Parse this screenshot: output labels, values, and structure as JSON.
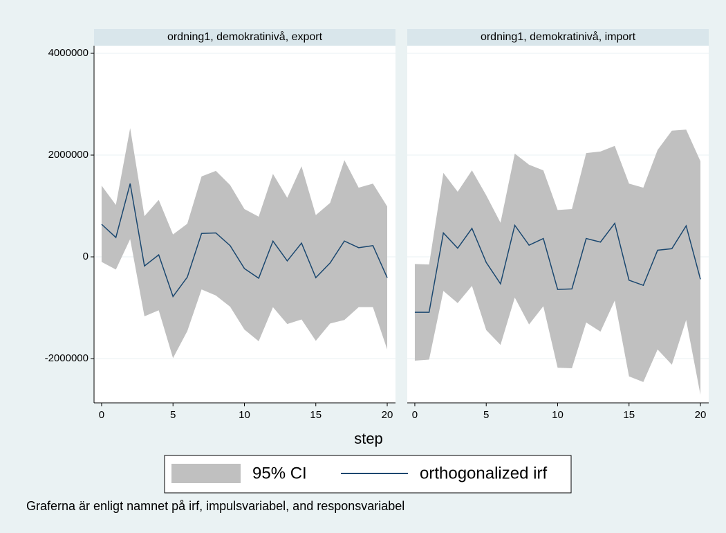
{
  "chart_data": {
    "type": "line",
    "xlabel": "step",
    "note": "Graferna är enligt namnet på irf, impulsvariabel, and responsvariabel",
    "x": [
      0,
      1,
      2,
      3,
      4,
      5,
      6,
      7,
      8,
      9,
      10,
      11,
      12,
      13,
      14,
      15,
      16,
      17,
      18,
      19,
      20
    ],
    "xlim": [
      -0.53,
      20.58
    ],
    "xticks": [
      0,
      5,
      10,
      15,
      20
    ],
    "ylim": [
      -2870000,
      4150000
    ],
    "yticks": [
      -2000000,
      0,
      2000000,
      4000000
    ],
    "grid": true,
    "ci": {
      "name": "95% CI",
      "color": "#c0c0c0"
    },
    "irf": {
      "name": "orthogonalized irf",
      "color": "#1a476f"
    },
    "panels": [
      {
        "title": "ordning1, demokratinivå, export",
        "irf": [
          640000,
          380000,
          1440000,
          -180000,
          40000,
          -780000,
          -400000,
          460000,
          470000,
          220000,
          -230000,
          -420000,
          310000,
          -80000,
          270000,
          -410000,
          -120000,
          310000,
          180000,
          220000,
          -410000
        ],
        "ci_upper": [
          1400000,
          1020000,
          2530000,
          800000,
          1120000,
          440000,
          650000,
          1580000,
          1690000,
          1410000,
          940000,
          790000,
          1630000,
          1160000,
          1780000,
          820000,
          1060000,
          1900000,
          1360000,
          1440000,
          990000
        ],
        "ci_lower": [
          -100000,
          -250000,
          350000,
          -1170000,
          -1050000,
          -1990000,
          -1460000,
          -640000,
          -760000,
          -980000,
          -1430000,
          -1660000,
          -990000,
          -1320000,
          -1230000,
          -1650000,
          -1310000,
          -1240000,
          -990000,
          -990000,
          -1820000
        ]
      },
      {
        "title": "ordning1, demokratinivå, import",
        "irf": [
          -1090000,
          -1090000,
          470000,
          170000,
          560000,
          -110000,
          -530000,
          620000,
          230000,
          360000,
          -640000,
          -630000,
          360000,
          290000,
          660000,
          -460000,
          -560000,
          130000,
          160000,
          610000,
          -440000
        ],
        "ci_upper": [
          -140000,
          -150000,
          1650000,
          1280000,
          1700000,
          1210000,
          670000,
          2030000,
          1810000,
          1700000,
          920000,
          940000,
          2040000,
          2070000,
          2180000,
          1440000,
          1360000,
          2100000,
          2480000,
          2500000,
          1880000
        ],
        "ci_lower": [
          -2040000,
          -2020000,
          -670000,
          -910000,
          -570000,
          -1440000,
          -1730000,
          -800000,
          -1330000,
          -970000,
          -2180000,
          -2190000,
          -1290000,
          -1470000,
          -860000,
          -2350000,
          -2460000,
          -1820000,
          -2120000,
          -1240000,
          -2710000
        ]
      }
    ]
  }
}
